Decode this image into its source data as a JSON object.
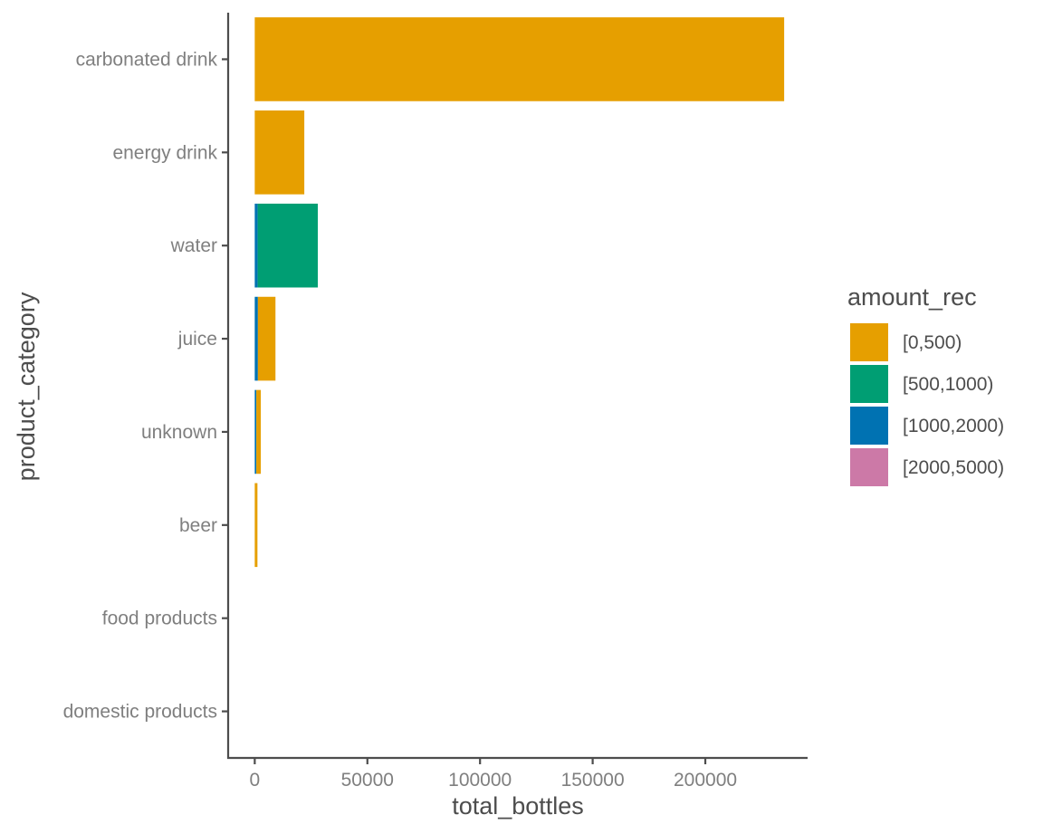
{
  "chart_data": {
    "type": "bar",
    "orientation": "horizontal",
    "stacked": true,
    "categories": [
      "carbonated drink",
      "energy drink",
      "water",
      "juice",
      "unknown",
      "beer",
      "food products",
      "domestic products"
    ],
    "series": [
      {
        "name": "[0,500)",
        "color": "#E69F00",
        "values": [
          235000,
          22000,
          0,
          7800,
          2000,
          1200,
          0,
          0
        ]
      },
      {
        "name": "[500,1000)",
        "color": "#009E73",
        "values": [
          0,
          0,
          26700,
          0,
          0,
          0,
          0,
          0
        ]
      },
      {
        "name": "[1000,2000)",
        "color": "#0072B2",
        "values": [
          0,
          0,
          1300,
          1400,
          700,
          0,
          0,
          0
        ]
      },
      {
        "name": "[2000,5000)",
        "color": "#CC79A7",
        "values": [
          0,
          0,
          0,
          0,
          0,
          0,
          0,
          0
        ]
      }
    ],
    "xlabel": "total_bottles",
    "ylabel": "product_category",
    "x_ticks": [
      0,
      50000,
      100000,
      150000,
      200000
    ],
    "x_tick_labels": [
      "0",
      "50000",
      "100000",
      "150000",
      "200000"
    ],
    "xlim": [
      -11800,
      245000
    ],
    "legend_title": "amount_rec",
    "legend_position": "right",
    "grid": false
  }
}
